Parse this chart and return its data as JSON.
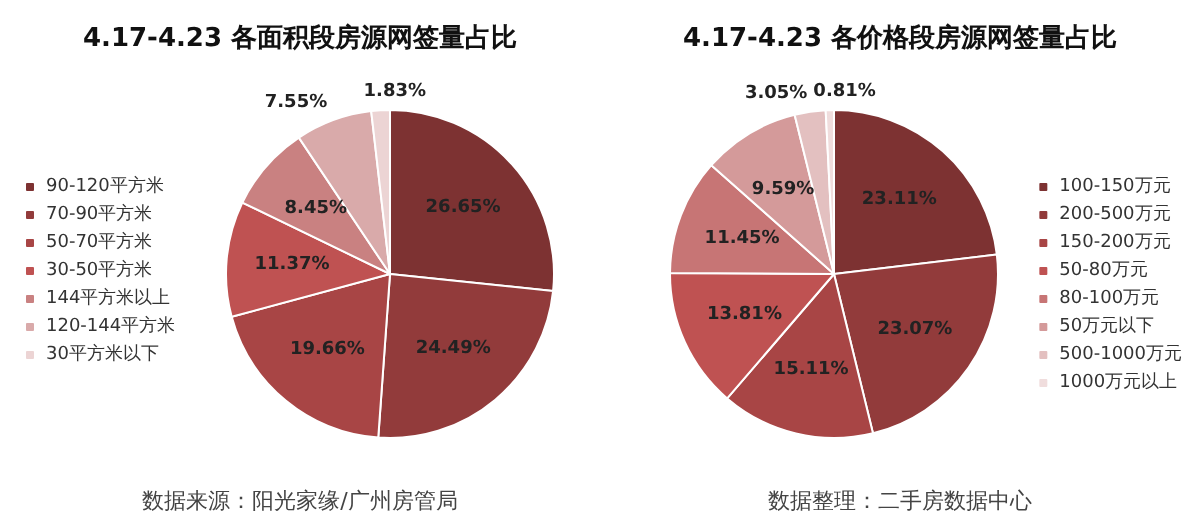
{
  "chart_data": [
    {
      "type": "pie",
      "title": "4.17-4.23 各面积段房源网签量占比",
      "categories": [
        "90-120平方米",
        "70-90平方米",
        "50-70平方米",
        "30-50平方米",
        "144平方米以上",
        "120-144平方米",
        "30平方米以下"
      ],
      "values": [
        26.65,
        24.49,
        19.66,
        11.37,
        8.45,
        7.55,
        1.83
      ],
      "colors": [
        "#7d3232",
        "#923b3b",
        "#a84545",
        "#bf5252",
        "#c98181",
        "#d9aaaa",
        "#ecd4d4"
      ],
      "value_labels": [
        "26.65%",
        "24.49%",
        "19.66%",
        "11.37%",
        "8.45%",
        "7.55%",
        "1.83%"
      ],
      "legend": "left",
      "annotations": [
        "数据来源：阳光家缘/广州房管局"
      ]
    },
    {
      "type": "pie",
      "title": "4.17-4.23 各价格段房源网签量占比",
      "categories": [
        "100-150万元",
        "200-500万元",
        "150-200万元",
        "50-80万元",
        "80-100万元",
        "50万元以下",
        "500-1000万元",
        "1000万元以上"
      ],
      "values": [
        23.11,
        23.07,
        15.11,
        13.81,
        11.45,
        9.59,
        3.05,
        0.81
      ],
      "colors": [
        "#7d3232",
        "#923b3b",
        "#a84545",
        "#bf5252",
        "#c77575",
        "#d49a9a",
        "#e3c0c0",
        "#f0dddd"
      ],
      "value_labels": [
        "23.11%",
        "23.07%",
        "15.11%",
        "13.81%",
        "11.45%",
        "9.59%",
        "3.05%",
        "0.81%"
      ],
      "legend": "right",
      "annotations": [
        "数据整理：二手房数据中心"
      ]
    }
  ]
}
